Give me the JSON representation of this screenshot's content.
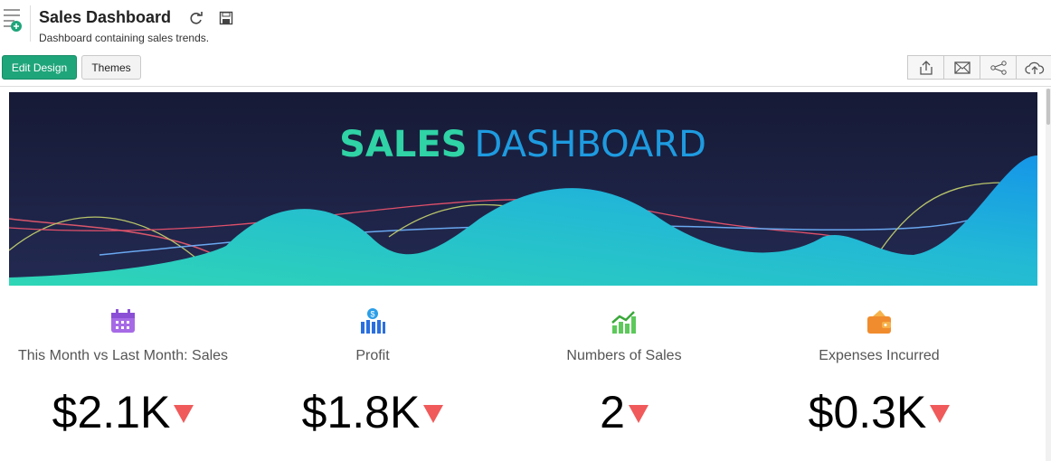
{
  "header": {
    "title": "Sales Dashboard",
    "subtitle": "Dashboard containing sales trends."
  },
  "toolbar": {
    "buttons": [
      "Edit Design",
      "Themes"
    ]
  },
  "banner": {
    "title_bold": "SALES",
    "title_light": "DASHBOARD"
  },
  "kpis": [
    {
      "label": "This Month vs Last Month: Sales",
      "value": "$2.1K"
    },
    {
      "label": "Profit",
      "value": "$1.8K"
    },
    {
      "label": "Numbers of Sales",
      "value": "2"
    },
    {
      "label": "Expenses Incurred",
      "value": "$0.3K"
    }
  ]
}
